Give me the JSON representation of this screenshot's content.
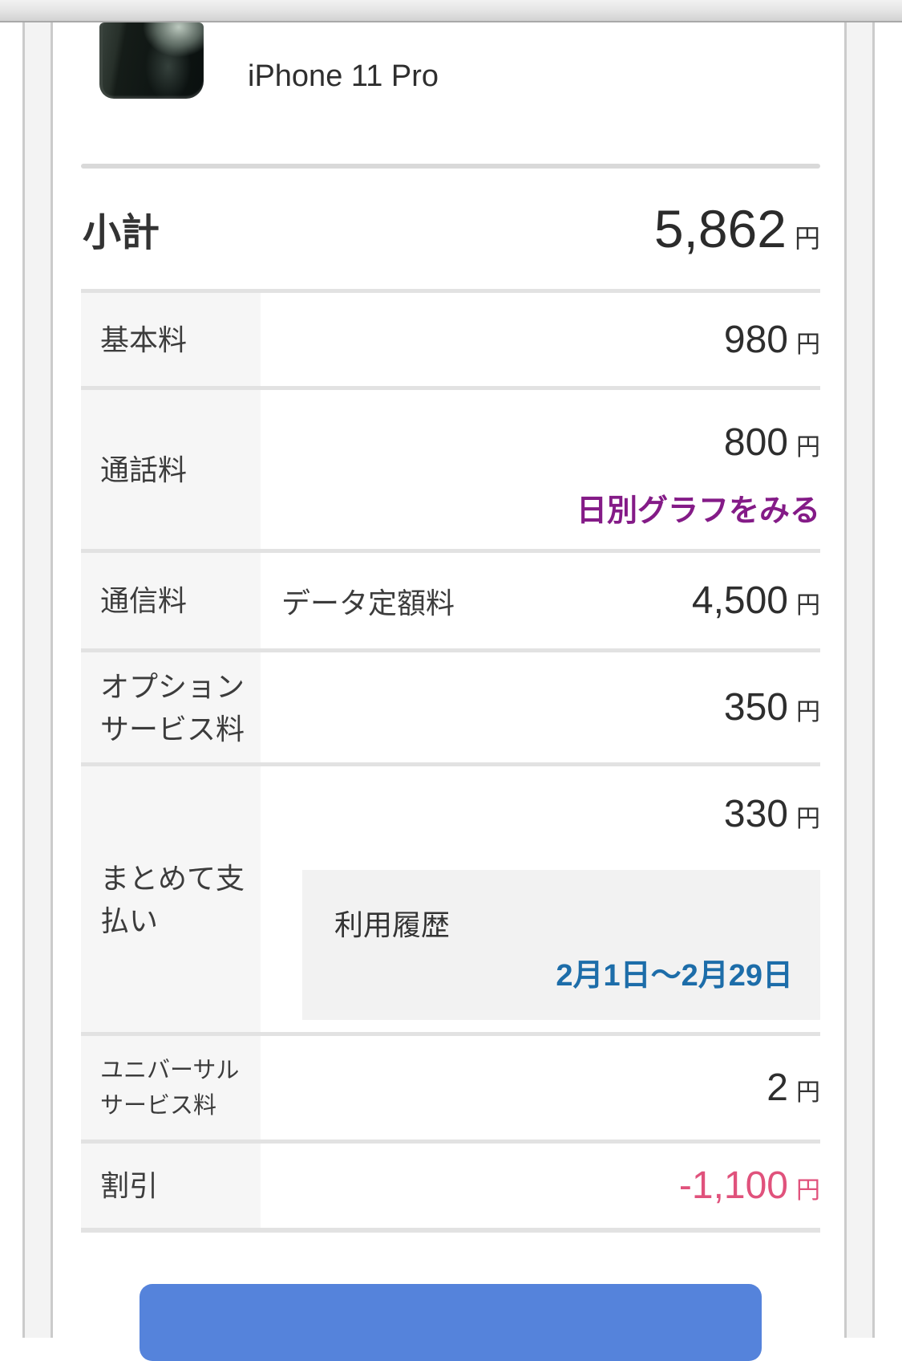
{
  "device": {
    "name": "iPhone 11 Pro"
  },
  "subtotal": {
    "label": "小計",
    "amount": "5,862",
    "unit": "円"
  },
  "rows": [
    {
      "label": "基本料",
      "amount": "980",
      "unit": "円"
    },
    {
      "label": "通話料",
      "amount": "800",
      "unit": "円",
      "link": "日別グラフをみる"
    },
    {
      "label": "通信料",
      "sublabel": "データ定額料",
      "amount": "4,500",
      "unit": "円"
    },
    {
      "label": "オプションサービス料",
      "amount": "350",
      "unit": "円"
    },
    {
      "label": "まとめて支払い",
      "amount": "330",
      "unit": "円",
      "box": {
        "title": "利用履歴",
        "period_link": "2月1日〜2月29日"
      }
    },
    {
      "label": "ユニバーサルサービス料",
      "amount": "2",
      "unit": "円"
    },
    {
      "label": "割引",
      "amount": "-1,100",
      "unit": "円"
    }
  ],
  "colors": {
    "link-purple": "#841b87",
    "link-blue": "#1d6da9",
    "pink": "#e0527c",
    "button-blue": "#5583db"
  }
}
